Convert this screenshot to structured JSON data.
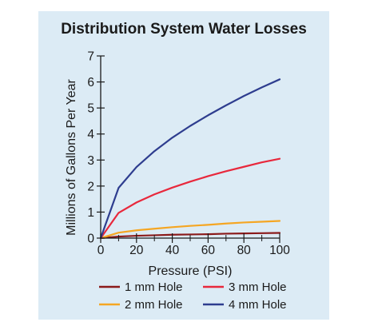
{
  "chart_data": {
    "type": "line",
    "title": "Distribution System Water Losses",
    "xlabel": "Pressure (PSI)",
    "ylabel": "Millions of Gallons Per Year",
    "xlim": [
      0,
      100
    ],
    "ylim": [
      0,
      7
    ],
    "xticks": [
      0,
      20,
      40,
      60,
      80,
      100
    ],
    "yticks": [
      0,
      1,
      2,
      3,
      4,
      5,
      6,
      7
    ],
    "grid": false,
    "legend_position": "bottom",
    "series": [
      {
        "name": "1 mm Hole",
        "color": "#8b1a1a",
        "x": [
          0,
          10,
          20,
          30,
          40,
          50,
          60,
          70,
          80,
          90,
          100
        ],
        "y": [
          0,
          0.06,
          0.09,
          0.11,
          0.13,
          0.14,
          0.15,
          0.17,
          0.18,
          0.19,
          0.2
        ]
      },
      {
        "name": "2 mm Hole",
        "color": "#f5a623",
        "x": [
          0,
          10,
          20,
          30,
          40,
          50,
          60,
          70,
          80,
          90,
          100
        ],
        "y": [
          0,
          0.21,
          0.3,
          0.36,
          0.42,
          0.47,
          0.51,
          0.56,
          0.6,
          0.63,
          0.66
        ]
      },
      {
        "name": "3 mm Hole",
        "color": "#e8283c",
        "x": [
          0,
          10,
          20,
          30,
          40,
          50,
          60,
          70,
          80,
          90,
          100
        ],
        "y": [
          0,
          0.97,
          1.37,
          1.68,
          1.94,
          2.17,
          2.38,
          2.57,
          2.74,
          2.91,
          3.05
        ]
      },
      {
        "name": "4 mm Hole",
        "color": "#2e3d8f",
        "x": [
          0,
          10,
          20,
          30,
          40,
          50,
          60,
          70,
          80,
          90,
          100
        ],
        "y": [
          0,
          1.93,
          2.73,
          3.34,
          3.86,
          4.31,
          4.72,
          5.1,
          5.46,
          5.79,
          6.1
        ]
      }
    ],
    "legend": [
      {
        "label": "1 mm Hole",
        "color": "#8b1a1a"
      },
      {
        "label": "3 mm Hole",
        "color": "#e8283c"
      },
      {
        "label": "2 mm Hole",
        "color": "#f5a623"
      },
      {
        "label": "4 mm Hole",
        "color": "#2e3d8f"
      }
    ]
  }
}
